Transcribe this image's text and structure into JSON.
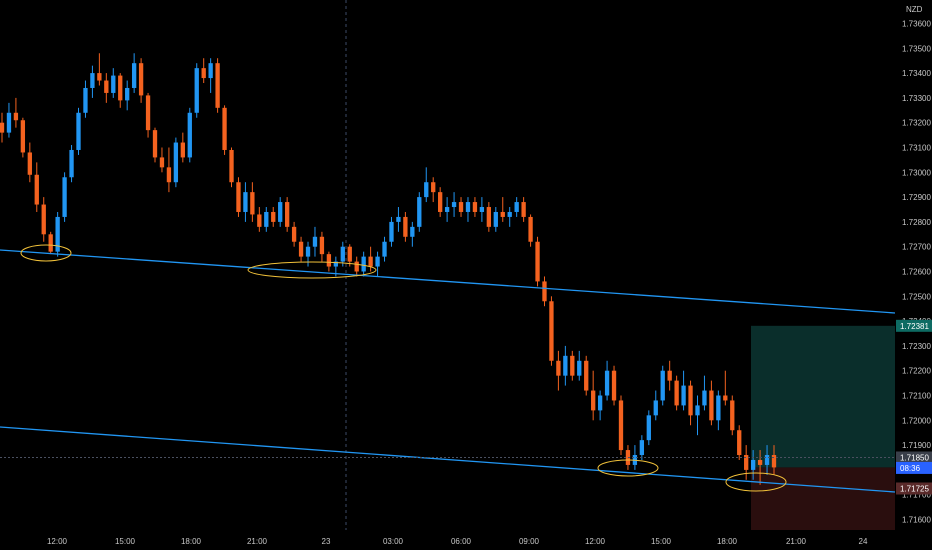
{
  "chart_data": {
    "type": "candlestick",
    "symbol_currency": "NZD",
    "x_ticks": [
      "12:00",
      "15:00",
      "18:00",
      "21:00",
      "23",
      "03:00",
      "06:00",
      "09:00",
      "12:00",
      "15:00",
      "18:00",
      "21:00",
      "24"
    ],
    "y_ticks": [
      "1.73600",
      "1.73500",
      "1.73400",
      "1.73300",
      "1.73200",
      "1.73100",
      "1.73000",
      "1.72900",
      "1.72800",
      "1.72700",
      "1.72600",
      "1.72500",
      "1.72400",
      "1.72300",
      "1.72200",
      "1.72100",
      "1.72000",
      "1.71900",
      "1.71700",
      "1.71600"
    ],
    "ylim": [
      1.7156,
      1.7364
    ],
    "price_tags": [
      {
        "label": "1.72381",
        "value": 1.72381,
        "color": "#0e6b63"
      },
      {
        "label": "1.71850",
        "value": 1.7185,
        "color": "#3a3f4a"
      },
      {
        "label": "08:36",
        "value": 1.71808,
        "color": "#2962ff"
      },
      {
        "label": "1.71725",
        "value": 1.71725,
        "color": "#5a2a2a"
      }
    ],
    "colors": {
      "up": "#2196f3",
      "down": "#f4621f",
      "trendline": "#2196f3",
      "highlight": "#f2c23a",
      "target": "#0a2e2b",
      "stop": "#2a0e0e"
    },
    "candles_ohlc": [
      [
        1.732,
        1.7324,
        1.7312,
        1.7316
      ],
      [
        1.7316,
        1.7328,
        1.7314,
        1.7324
      ],
      [
        1.7324,
        1.733,
        1.7318,
        1.7321
      ],
      [
        1.7321,
        1.7322,
        1.7306,
        1.7308
      ],
      [
        1.7308,
        1.7312,
        1.7296,
        1.7299
      ],
      [
        1.7299,
        1.7304,
        1.7284,
        1.7287
      ],
      [
        1.7287,
        1.729,
        1.7272,
        1.7275
      ],
      [
        1.7275,
        1.7276,
        1.7267,
        1.7268
      ],
      [
        1.7268,
        1.7284,
        1.7266,
        1.7282
      ],
      [
        1.7282,
        1.73,
        1.728,
        1.7298
      ],
      [
        1.7298,
        1.7311,
        1.7296,
        1.7309
      ],
      [
        1.7309,
        1.7326,
        1.7307,
        1.7324
      ],
      [
        1.7324,
        1.7337,
        1.7322,
        1.7334
      ],
      [
        1.7334,
        1.7343,
        1.733,
        1.734
      ],
      [
        1.734,
        1.7348,
        1.7335,
        1.7337
      ],
      [
        1.7337,
        1.734,
        1.7328,
        1.7332
      ],
      [
        1.7332,
        1.7342,
        1.733,
        1.7339
      ],
      [
        1.7339,
        1.734,
        1.7326,
        1.7329
      ],
      [
        1.7329,
        1.7337,
        1.7325,
        1.7334
      ],
      [
        1.7334,
        1.7348,
        1.7332,
        1.7344
      ],
      [
        1.7344,
        1.7346,
        1.7328,
        1.7331
      ],
      [
        1.7331,
        1.7332,
        1.7314,
        1.7317
      ],
      [
        1.7317,
        1.7318,
        1.7304,
        1.7306
      ],
      [
        1.7306,
        1.731,
        1.73,
        1.7302
      ],
      [
        1.7302,
        1.731,
        1.7292,
        1.7296
      ],
      [
        1.7296,
        1.7314,
        1.7294,
        1.7312
      ],
      [
        1.7312,
        1.7316,
        1.7304,
        1.7306
      ],
      [
        1.7306,
        1.7326,
        1.7304,
        1.7324
      ],
      [
        1.7324,
        1.7344,
        1.7322,
        1.7342
      ],
      [
        1.7342,
        1.7346,
        1.7336,
        1.7338
      ],
      [
        1.7338,
        1.7346,
        1.7332,
        1.7344
      ],
      [
        1.7344,
        1.7346,
        1.7324,
        1.7326
      ],
      [
        1.7326,
        1.7327,
        1.7307,
        1.7309
      ],
      [
        1.7309,
        1.731,
        1.7294,
        1.7296
      ],
      [
        1.7296,
        1.7298,
        1.7282,
        1.7284
      ],
      [
        1.7284,
        1.7296,
        1.728,
        1.7292
      ],
      [
        1.7292,
        1.7296,
        1.728,
        1.7283
      ],
      [
        1.7283,
        1.7286,
        1.7276,
        1.7278
      ],
      [
        1.7278,
        1.7286,
        1.7276,
        1.7284
      ],
      [
        1.7284,
        1.7286,
        1.7278,
        1.728
      ],
      [
        1.728,
        1.729,
        1.7278,
        1.7288
      ],
      [
        1.7288,
        1.729,
        1.7276,
        1.7278
      ],
      [
        1.7278,
        1.728,
        1.727,
        1.7272
      ],
      [
        1.7272,
        1.7274,
        1.7264,
        1.7266
      ],
      [
        1.7266,
        1.7272,
        1.7262,
        1.727
      ],
      [
        1.727,
        1.7278,
        1.7266,
        1.7274
      ],
      [
        1.7274,
        1.7276,
        1.7264,
        1.7267
      ],
      [
        1.7267,
        1.7268,
        1.726,
        1.7262
      ],
      [
        1.7262,
        1.7266,
        1.7258,
        1.7264
      ],
      [
        1.7264,
        1.7272,
        1.7262,
        1.727
      ],
      [
        1.727,
        1.7271,
        1.7262,
        1.7264
      ],
      [
        1.7264,
        1.7266,
        1.7258,
        1.726
      ],
      [
        1.726,
        1.7268,
        1.7258,
        1.7266
      ],
      [
        1.7266,
        1.727,
        1.726,
        1.7262
      ],
      [
        1.7262,
        1.7268,
        1.7258,
        1.7266
      ],
      [
        1.7266,
        1.7274,
        1.7264,
        1.7272
      ],
      [
        1.7272,
        1.7282,
        1.727,
        1.728
      ],
      [
        1.728,
        1.7286,
        1.7276,
        1.7282
      ],
      [
        1.7282,
        1.7284,
        1.7272,
        1.7274
      ],
      [
        1.7274,
        1.728,
        1.727,
        1.7278
      ],
      [
        1.7278,
        1.7292,
        1.7276,
        1.729
      ],
      [
        1.729,
        1.7302,
        1.7288,
        1.7296
      ],
      [
        1.7296,
        1.7298,
        1.7288,
        1.7292
      ],
      [
        1.7292,
        1.7294,
        1.7282,
        1.7284
      ],
      [
        1.7284,
        1.729,
        1.728,
        1.7286
      ],
      [
        1.7286,
        1.7292,
        1.7282,
        1.7288
      ],
      [
        1.7288,
        1.729,
        1.7282,
        1.7284
      ],
      [
        1.7284,
        1.729,
        1.728,
        1.7288
      ],
      [
        1.7288,
        1.729,
        1.7282,
        1.7284
      ],
      [
        1.7284,
        1.729,
        1.728,
        1.7286
      ],
      [
        1.7286,
        1.7288,
        1.7276,
        1.7278
      ],
      [
        1.7278,
        1.7286,
        1.7276,
        1.7284
      ],
      [
        1.7284,
        1.729,
        1.728,
        1.7282
      ],
      [
        1.7282,
        1.7286,
        1.7278,
        1.7284
      ],
      [
        1.7284,
        1.729,
        1.7282,
        1.7288
      ],
      [
        1.7288,
        1.729,
        1.728,
        1.7282
      ],
      [
        1.7282,
        1.7283,
        1.727,
        1.7272
      ],
      [
        1.7272,
        1.7274,
        1.7254,
        1.7256
      ],
      [
        1.7256,
        1.7258,
        1.7246,
        1.7248
      ],
      [
        1.7248,
        1.725,
        1.7222,
        1.7224
      ],
      [
        1.7224,
        1.7228,
        1.7212,
        1.7218
      ],
      [
        1.7218,
        1.723,
        1.7214,
        1.7226
      ],
      [
        1.7226,
        1.7228,
        1.7216,
        1.7218
      ],
      [
        1.7218,
        1.7228,
        1.7216,
        1.7224
      ],
      [
        1.7224,
        1.7226,
        1.721,
        1.7212
      ],
      [
        1.7212,
        1.722,
        1.72,
        1.7204
      ],
      [
        1.7204,
        1.7212,
        1.72,
        1.721
      ],
      [
        1.721,
        1.7224,
        1.7208,
        1.722
      ],
      [
        1.722,
        1.7222,
        1.7206,
        1.7208
      ],
      [
        1.7208,
        1.721,
        1.7186,
        1.7188
      ],
      [
        1.7188,
        1.719,
        1.718,
        1.7182
      ],
      [
        1.7182,
        1.719,
        1.718,
        1.7186
      ],
      [
        1.7186,
        1.7194,
        1.7184,
        1.7192
      ],
      [
        1.7192,
        1.7204,
        1.719,
        1.7202
      ],
      [
        1.7202,
        1.7212,
        1.72,
        1.7208
      ],
      [
        1.7208,
        1.7222,
        1.7206,
        1.722
      ],
      [
        1.722,
        1.7224,
        1.7212,
        1.7216
      ],
      [
        1.7216,
        1.7218,
        1.7204,
        1.7206
      ],
      [
        1.7206,
        1.722,
        1.7204,
        1.7214
      ],
      [
        1.7214,
        1.7216,
        1.7198,
        1.7202
      ],
      [
        1.7202,
        1.721,
        1.7194,
        1.7206
      ],
      [
        1.7206,
        1.7218,
        1.7204,
        1.7212
      ],
      [
        1.7212,
        1.7216,
        1.7198,
        1.72
      ],
      [
        1.72,
        1.7212,
        1.7196,
        1.721
      ],
      [
        1.721,
        1.722,
        1.7206,
        1.7208
      ],
      [
        1.7208,
        1.721,
        1.7194,
        1.7196
      ],
      [
        1.7196,
        1.7198,
        1.7184,
        1.7186
      ],
      [
        1.7186,
        1.719,
        1.7176,
        1.718
      ],
      [
        1.718,
        1.7188,
        1.7176,
        1.7184
      ],
      [
        1.7184,
        1.7188,
        1.7174,
        1.7182
      ],
      [
        1.7182,
        1.719,
        1.7178,
        1.7186
      ],
      [
        1.7186,
        1.719,
        1.7178,
        1.7181
      ]
    ]
  }
}
